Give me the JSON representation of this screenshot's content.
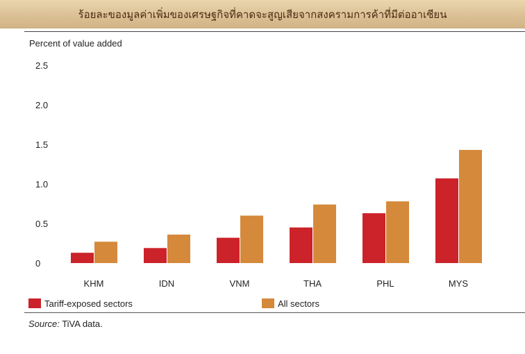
{
  "banner": {
    "title": "ร้อยละของมูลค่าเพิ่มของเศรษฐกิจที่คาดจะสูญเสียจากสงครามการค้าที่มีต่ออาเซียน"
  },
  "source": {
    "label": "Source:",
    "text": "TiVA data."
  },
  "chart_data": {
    "type": "bar",
    "ylabel": "Percent of value added",
    "ylim": [
      0,
      2.5
    ],
    "yticks": [
      "0",
      "0.5",
      "1.0",
      "1.5",
      "2.0",
      "2.5"
    ],
    "categories": [
      "KHM",
      "IDN",
      "VNM",
      "THA",
      "PHL",
      "MYS"
    ],
    "series": [
      {
        "name": "Tariff-exposed sectors",
        "color": "#cc2229",
        "values": [
          0.13,
          0.19,
          0.32,
          0.45,
          0.63,
          1.07
        ]
      },
      {
        "name": "All sectors",
        "color": "#d5893b",
        "values": [
          0.27,
          0.36,
          0.6,
          0.74,
          0.78,
          1.43
        ]
      }
    ],
    "grid": false,
    "legend_position": "bottom"
  }
}
